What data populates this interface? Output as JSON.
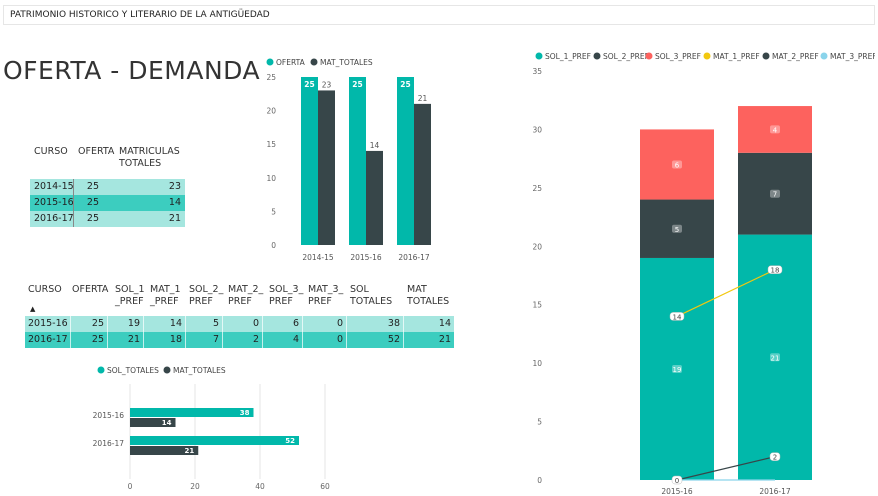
{
  "header": {
    "title": "PATRIMONIO HISTORICO Y LITERARIO DE LA ANTIGÜEDAD"
  },
  "page_title": "OFERTA - DEMANDA",
  "colors": {
    "teal": "#01b8aa",
    "dark": "#374649",
    "red": "#fd625e",
    "yellow": "#f2c80f",
    "lightblue": "#8ad4eb",
    "row_light": "#a5e6df",
    "row_dark": "#3ccdbf"
  },
  "table1": {
    "headers": [
      "CURSO",
      "OFERTA",
      "MATRICULAS",
      "TOTALES"
    ],
    "rows": [
      [
        "2014-15",
        "25",
        "23"
      ],
      [
        "2015-16",
        "25",
        "14"
      ],
      [
        "2016-17",
        "25",
        "21"
      ]
    ]
  },
  "table2": {
    "headers": [
      [
        "CURSO",
        ""
      ],
      [
        "OFERTA",
        ""
      ],
      [
        "SOL_1",
        "_PREF"
      ],
      [
        "MAT_1",
        "_PREF"
      ],
      [
        "SOL_2_",
        "PREF"
      ],
      [
        "MAT_2_",
        "PREF"
      ],
      [
        "SOL_3_",
        "PREF"
      ],
      [
        "MAT_3_",
        "PREF"
      ],
      [
        "SOL",
        "TOTALES"
      ],
      [
        "MAT",
        "TOTALES"
      ]
    ],
    "sort_indicator": "▲",
    "rows": [
      [
        "2015-16",
        "25",
        "19",
        "14",
        "5",
        "0",
        "6",
        "0",
        "38",
        "14"
      ],
      [
        "2016-17",
        "25",
        "21",
        "18",
        "7",
        "2",
        "4",
        "0",
        "52",
        "21"
      ]
    ]
  },
  "chart_data": [
    {
      "type": "bar",
      "legend": [
        "OFERTA",
        "MAT_TOTALES"
      ],
      "categories": [
        "2014-15",
        "2015-16",
        "2016-17"
      ],
      "series": [
        {
          "name": "OFERTA",
          "values": [
            25,
            25,
            25
          ]
        },
        {
          "name": "MAT_TOTALES",
          "values": [
            23,
            14,
            21
          ]
        }
      ],
      "yticks": [
        "0",
        "5",
        "10",
        "15",
        "20",
        "25"
      ],
      "ylim": [
        0,
        25
      ]
    },
    {
      "type": "bar",
      "orientation": "horizontal",
      "legend": [
        "SOL_TOTALES",
        "MAT_TOTALES"
      ],
      "categories": [
        "2015-16",
        "2016-17"
      ],
      "series": [
        {
          "name": "SOL_TOTALES",
          "values": [
            38,
            52
          ]
        },
        {
          "name": "MAT_TOTALES",
          "values": [
            14,
            21
          ]
        }
      ],
      "xticks": [
        "0",
        "20",
        "40",
        "60"
      ],
      "xlim": [
        0,
        60
      ]
    },
    {
      "type": "bar",
      "stacked": true,
      "legend": [
        "SOL_1_PREF",
        "SOL_2_PREF",
        "SOL_3_PREF",
        "MAT_1_PREF",
        "MAT_2_PREF",
        "MAT_3_PREF"
      ],
      "categories": [
        "2015-16",
        "2016-17"
      ],
      "series": [
        {
          "name": "SOL_1_PREF",
          "values": [
            19,
            21
          ]
        },
        {
          "name": "SOL_2_PREF",
          "values": [
            5,
            7
          ]
        },
        {
          "name": "SOL_3_PREF",
          "values": [
            6,
            4
          ]
        }
      ],
      "lines": [
        {
          "name": "MAT_1_PREF",
          "values": [
            14,
            18
          ]
        },
        {
          "name": "MAT_2_PREF",
          "values": [
            0,
            2
          ]
        },
        {
          "name": "MAT_3_PREF",
          "values": [
            0,
            0
          ]
        }
      ],
      "yticks": [
        "0",
        "5",
        "10",
        "15",
        "20",
        "25",
        "30",
        "35"
      ],
      "ylim": [
        0,
        35
      ]
    }
  ]
}
